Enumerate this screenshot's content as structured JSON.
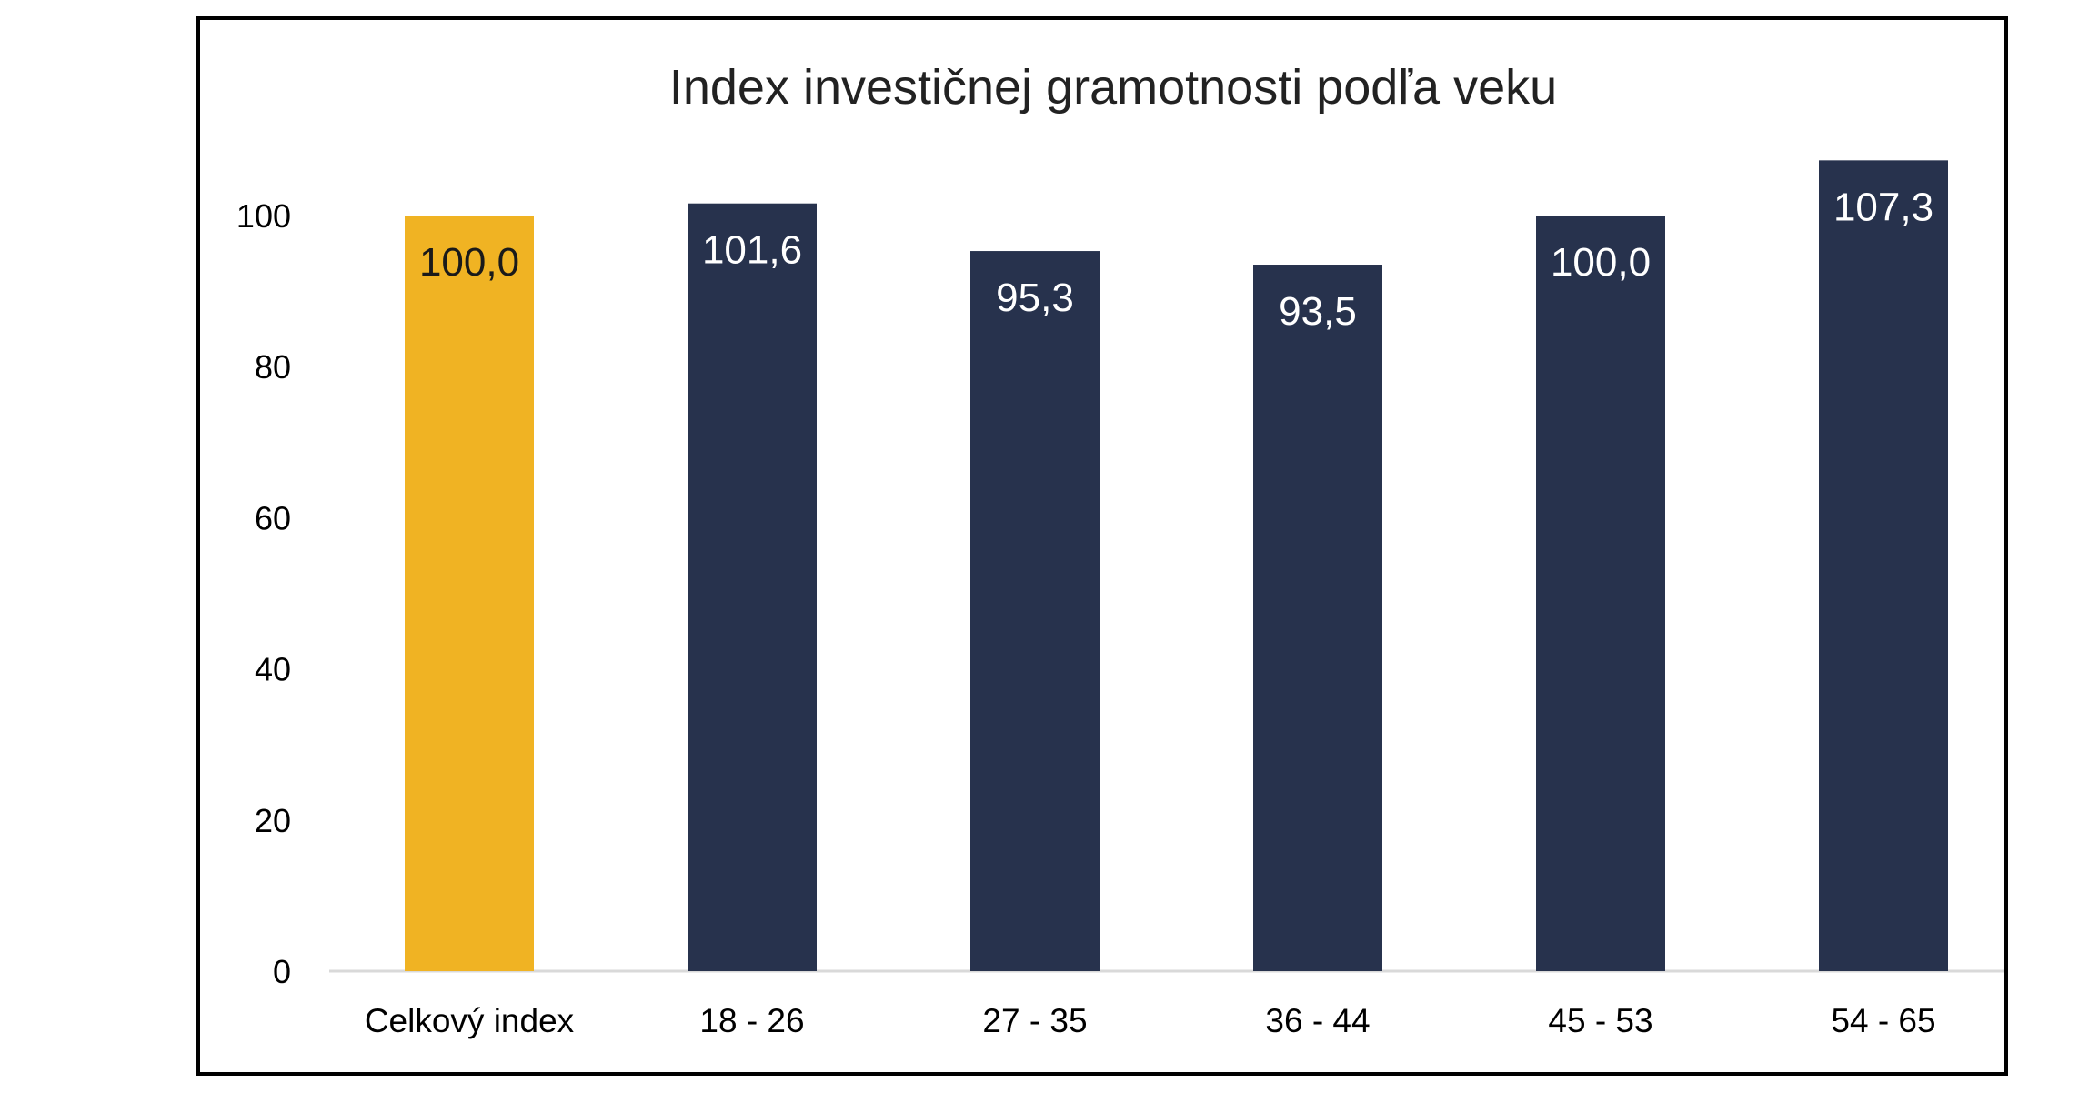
{
  "chart_data": {
    "type": "bar",
    "title": "Index investičnej gramotnosti podľa veku",
    "xlabel": "",
    "ylabel": "",
    "categories": [
      "Celkový index",
      "18 - 26",
      "27 - 35",
      "36 - 44",
      "45 - 53",
      "54 - 65"
    ],
    "values": [
      100.0,
      101.6,
      95.3,
      93.5,
      100.0,
      107.3
    ],
    "value_labels": [
      "100,0",
      "101,6",
      "95,3",
      "93,5",
      "100,0",
      "107,3"
    ],
    "y_ticks": [
      "0",
      "20",
      "40",
      "60",
      "80",
      "100"
    ],
    "ylim": [
      0,
      100
    ],
    "grid": false,
    "legend": "none",
    "colors": {
      "highlight_bar": "#F0B323",
      "bar": "#27324D",
      "highlight_label": "#1A1A1A",
      "bar_label": "#FFFFFF",
      "axis_line": "#D9D9D9"
    },
    "highlight_index": 0
  }
}
